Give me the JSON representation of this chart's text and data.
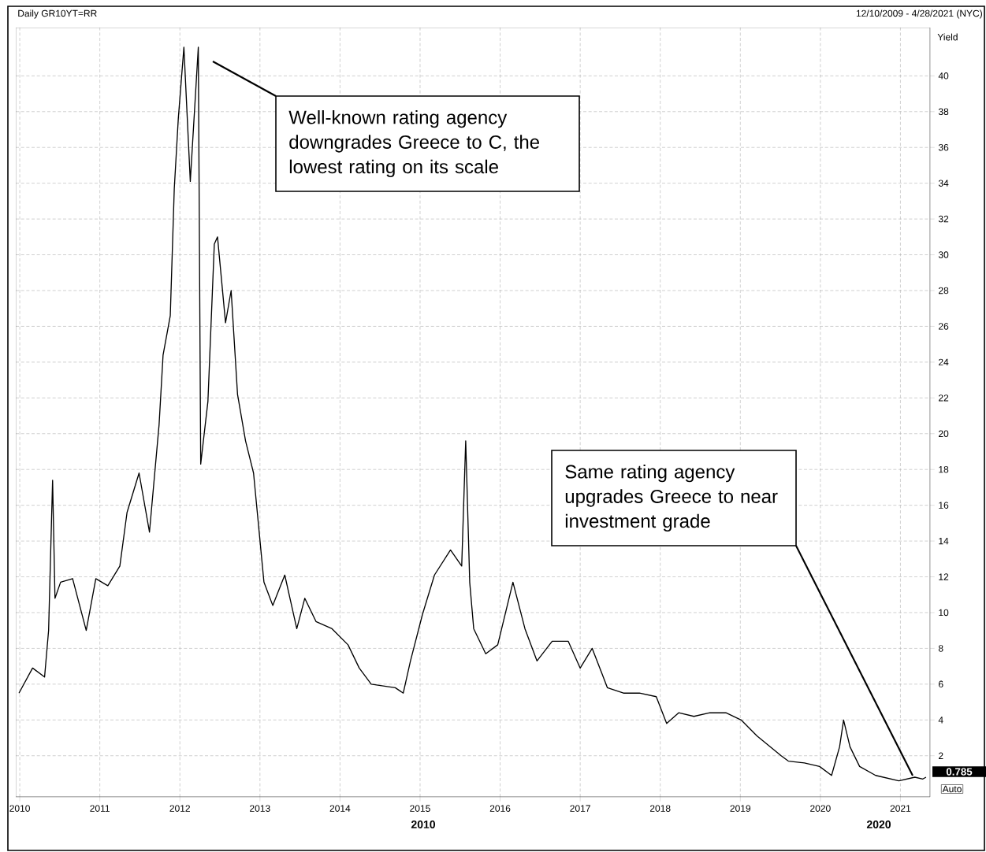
{
  "chart_data": {
    "type": "line",
    "title": "Daily GR10YT=RR",
    "subtitle": "12/10/2009 - 4/28/2021 (NYC)",
    "ylabel": "Yield",
    "x": [
      2009.99,
      2010.16,
      2010.31,
      2010.36,
      2010.41,
      2010.44,
      2010.51,
      2010.66,
      2010.83,
      2010.95,
      2011.1,
      2011.25,
      2011.34,
      2011.49,
      2011.62,
      2011.74,
      2011.79,
      2011.88,
      2011.93,
      2011.98,
      2012.05,
      2012.13,
      2012.23,
      2012.26,
      2012.35,
      2012.43,
      2012.47,
      2012.57,
      2012.64,
      2012.72,
      2012.82,
      2012.92,
      2013.05,
      2013.16,
      2013.31,
      2013.46,
      2013.56,
      2013.7,
      2013.9,
      2014.1,
      2014.24,
      2014.39,
      2014.69,
      2014.79,
      2014.88,
      2015.03,
      2015.18,
      2015.38,
      2015.52,
      2015.57,
      2015.62,
      2015.67,
      2015.82,
      2015.97,
      2016.16,
      2016.31,
      2016.46,
      2016.65,
      2016.85,
      2017.0,
      2017.15,
      2017.34,
      2017.54,
      2017.74,
      2017.95,
      2018.08,
      2018.23,
      2018.42,
      2018.62,
      2018.82,
      2019.01,
      2019.21,
      2019.51,
      2019.6,
      2019.8,
      2019.99,
      2020.14,
      2020.24,
      2020.29,
      2020.37,
      2020.49,
      2020.69,
      2020.98,
      2021.18,
      2021.28,
      2021.32
    ],
    "values": [
      5.5,
      6.9,
      6.4,
      9.0,
      17.4,
      10.8,
      11.7,
      11.9,
      9.0,
      11.9,
      11.5,
      12.6,
      15.6,
      17.8,
      14.5,
      20.5,
      24.4,
      26.6,
      33.7,
      37.6,
      41.6,
      34.1,
      41.6,
      18.3,
      21.8,
      30.6,
      31.0,
      26.2,
      28.0,
      22.2,
      19.6,
      17.8,
      11.7,
      10.4,
      12.1,
      9.1,
      10.8,
      9.5,
      9.1,
      8.2,
      6.9,
      6.0,
      5.8,
      5.5,
      7.3,
      9.9,
      12.1,
      13.5,
      12.6,
      19.6,
      11.7,
      9.1,
      7.7,
      8.2,
      11.7,
      9.1,
      7.3,
      8.4,
      8.4,
      6.9,
      8.0,
      5.8,
      5.5,
      5.5,
      5.3,
      3.8,
      4.4,
      4.2,
      4.4,
      4.4,
      4.0,
      3.1,
      2.0,
      1.7,
      1.6,
      1.4,
      0.9,
      2.5,
      4.0,
      2.5,
      1.4,
      0.9,
      0.6,
      0.8,
      0.7,
      0.8
    ],
    "color": "#000000",
    "xlim": [
      2009.95,
      2021.37
    ],
    "ylim": [
      -0.3,
      42.7
    ],
    "xticks": [
      2010,
      2011,
      2012,
      2013,
      2014,
      2015,
      2016,
      2017,
      2018,
      2019,
      2020,
      2021
    ],
    "yticks": [
      2,
      4,
      6,
      8,
      10,
      12,
      14,
      16,
      18,
      20,
      22,
      24,
      26,
      28,
      30,
      32,
      34,
      36,
      38,
      40
    ],
    "grid": true,
    "line_style": "solid",
    "annotations": [
      "Well-known rating agency downgrades Greece to C, the lowest rating on its scale",
      "Same rating agency upgrades Greece to near investment grade",
      "0.785",
      "2010",
      "2020",
      "Auto"
    ]
  }
}
